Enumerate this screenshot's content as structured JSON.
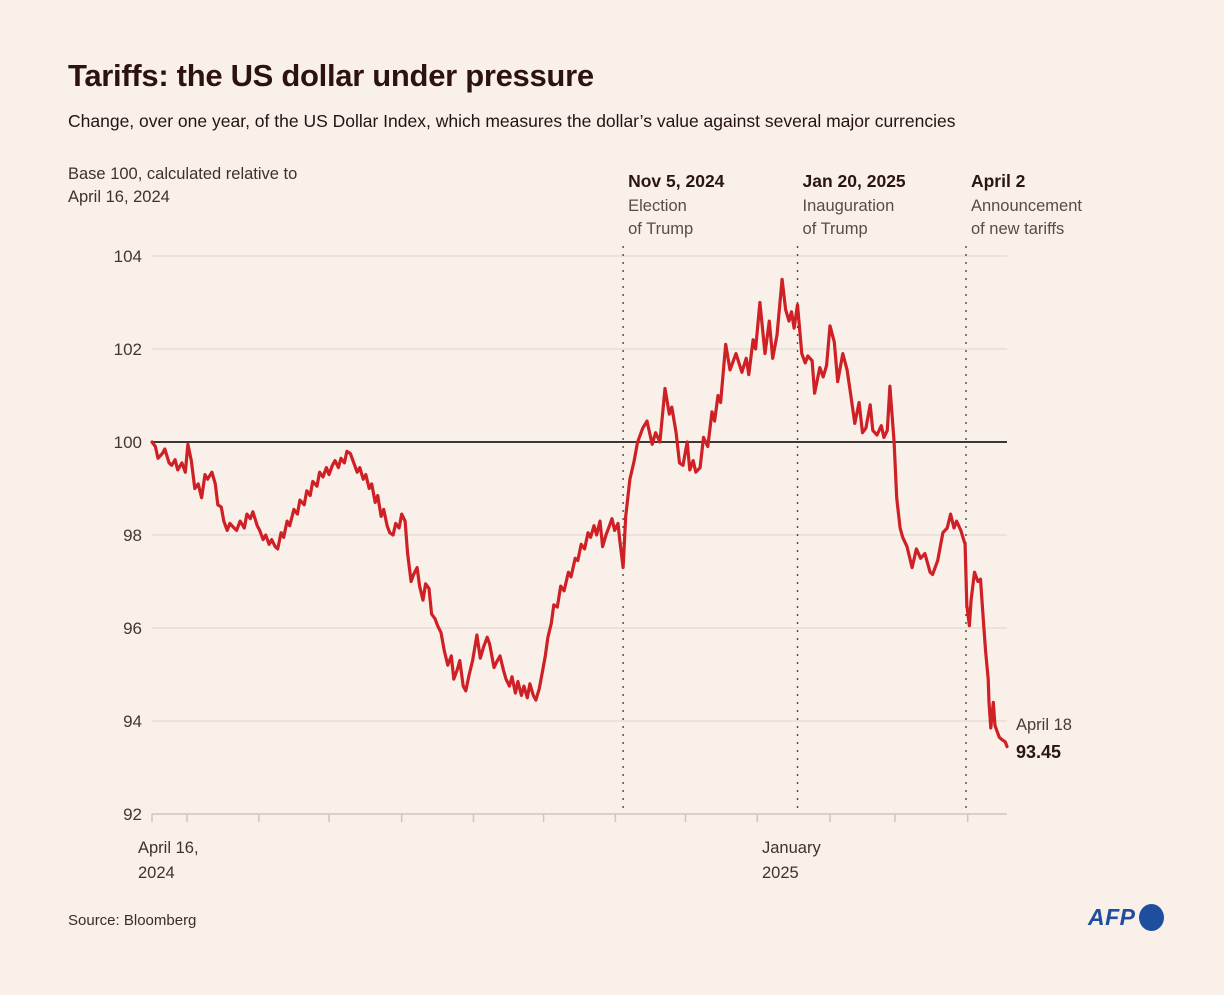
{
  "page": {
    "title": "Tariffs: the US dollar under pressure",
    "subtitle": "Change, over one year, of the US Dollar Index, which measures the dollar’s value against several major currencies",
    "note": "Base 100, calculated relative to\nApril 16, 2024",
    "source": "Source: Bloomberg",
    "logo_text": "AFP"
  },
  "colors": {
    "background": "#f9f0ea",
    "line_red": "#cf2026",
    "grid_light": "#ded4cf",
    "axis_baseline": "#cfc5c0",
    "zero_line_dark": "#3b3733",
    "dotted_event_line": "#55463f",
    "tick_label": "#44372f",
    "afp_blue": "#1f4e9e"
  },
  "chart_data": {
    "type": "line",
    "title": "US Dollar Index, base 100 relative to April 16, 2024",
    "xlabel": "",
    "ylabel": "",
    "x_range": [
      "April 16, 2024",
      "April 18, 2025"
    ],
    "x_axis_labels": {
      "start": "April 16,\n2024",
      "january": "January\n2025"
    },
    "y_axis": {
      "min": 92,
      "max": 104,
      "ticks": [
        104,
        102,
        100,
        98,
        96,
        94,
        92
      ],
      "baseline_value": 100
    },
    "grid": "horizontal-only",
    "legend": "none",
    "month_ticks_t": [
      0,
      0.041,
      0.125,
      0.207,
      0.292,
      0.376,
      0.458,
      0.542,
      0.624,
      0.708,
      0.793,
      0.869,
      0.954
    ],
    "events": [
      {
        "t": 0.551,
        "date": "Nov 5, 2024",
        "desc": "Election\nof Trump"
      },
      {
        "t": 0.755,
        "date": "Jan 20, 2025",
        "desc": "Inauguration\nof Trump"
      },
      {
        "t": 0.952,
        "date": "April 2",
        "desc": "Announcement\nof new tariffs"
      }
    ],
    "end_label": {
      "date": "April 18",
      "value": "93.45"
    },
    "series_name": "US Dollar Index (base 100)",
    "series": [
      [
        0,
        100
      ],
      [
        0.004,
        99.9
      ],
      [
        0.007,
        99.65
      ],
      [
        0.012,
        99.75
      ],
      [
        0.015,
        99.85
      ],
      [
        0.02,
        99.55
      ],
      [
        0.023,
        99.5
      ],
      [
        0.027,
        99.62
      ],
      [
        0.03,
        99.4
      ],
      [
        0.035,
        99.55
      ],
      [
        0.039,
        99.35
      ],
      [
        0.042,
        99.95
      ],
      [
        0.046,
        99.6
      ],
      [
        0.05,
        99
      ],
      [
        0.054,
        99.1
      ],
      [
        0.058,
        98.8
      ],
      [
        0.062,
        99.3
      ],
      [
        0.065,
        99.2
      ],
      [
        0.07,
        99.35
      ],
      [
        0.074,
        99.1
      ],
      [
        0.077,
        98.65
      ],
      [
        0.081,
        98.6
      ],
      [
        0.084,
        98.3
      ],
      [
        0.088,
        98.1
      ],
      [
        0.091,
        98.25
      ],
      [
        0.096,
        98.15
      ],
      [
        0.099,
        98.1
      ],
      [
        0.103,
        98.3
      ],
      [
        0.108,
        98.15
      ],
      [
        0.111,
        98.45
      ],
      [
        0.115,
        98.35
      ],
      [
        0.118,
        98.5
      ],
      [
        0.123,
        98.2
      ],
      [
        0.126,
        98.1
      ],
      [
        0.13,
        97.9
      ],
      [
        0.133,
        98
      ],
      [
        0.137,
        97.8
      ],
      [
        0.14,
        97.9
      ],
      [
        0.144,
        97.75
      ],
      [
        0.147,
        97.7
      ],
      [
        0.151,
        98.05
      ],
      [
        0.154,
        97.95
      ],
      [
        0.158,
        98.3
      ],
      [
        0.161,
        98.2
      ],
      [
        0.166,
        98.55
      ],
      [
        0.17,
        98.45
      ],
      [
        0.173,
        98.75
      ],
      [
        0.178,
        98.65
      ],
      [
        0.181,
        98.95
      ],
      [
        0.185,
        98.85
      ],
      [
        0.188,
        99.15
      ],
      [
        0.193,
        99.05
      ],
      [
        0.196,
        99.35
      ],
      [
        0.2,
        99.25
      ],
      [
        0.204,
        99.45
      ],
      [
        0.207,
        99.3
      ],
      [
        0.211,
        99.5
      ],
      [
        0.214,
        99.6
      ],
      [
        0.218,
        99.45
      ],
      [
        0.221,
        99.65
      ],
      [
        0.225,
        99.55
      ],
      [
        0.228,
        99.8
      ],
      [
        0.232,
        99.75
      ],
      [
        0.235,
        99.6
      ],
      [
        0.24,
        99.35
      ],
      [
        0.243,
        99.45
      ],
      [
        0.247,
        99.2
      ],
      [
        0.25,
        99.3
      ],
      [
        0.254,
        99
      ],
      [
        0.257,
        99.1
      ],
      [
        0.261,
        98.7
      ],
      [
        0.264,
        98.85
      ],
      [
        0.268,
        98.4
      ],
      [
        0.271,
        98.55
      ],
      [
        0.275,
        98.2
      ],
      [
        0.278,
        98.05
      ],
      [
        0.282,
        98
      ],
      [
        0.285,
        98.25
      ],
      [
        0.289,
        98.15
      ],
      [
        0.292,
        98.45
      ],
      [
        0.296,
        98.3
      ],
      [
        0.299,
        97.6
      ],
      [
        0.303,
        97
      ],
      [
        0.306,
        97.15
      ],
      [
        0.31,
        97.3
      ],
      [
        0.313,
        96.9
      ],
      [
        0.317,
        96.6
      ],
      [
        0.32,
        96.95
      ],
      [
        0.324,
        96.85
      ],
      [
        0.327,
        96.3
      ],
      [
        0.331,
        96.2
      ],
      [
        0.334,
        96.05
      ],
      [
        0.338,
        95.9
      ],
      [
        0.342,
        95.5
      ],
      [
        0.346,
        95.2
      ],
      [
        0.35,
        95.4
      ],
      [
        0.353,
        94.9
      ],
      [
        0.357,
        95.1
      ],
      [
        0.36,
        95.3
      ],
      [
        0.364,
        94.75
      ],
      [
        0.367,
        94.65
      ],
      [
        0.371,
        95
      ],
      [
        0.375,
        95.3
      ],
      [
        0.38,
        95.85
      ],
      [
        0.384,
        95.35
      ],
      [
        0.388,
        95.6
      ],
      [
        0.392,
        95.8
      ],
      [
        0.395,
        95.65
      ],
      [
        0.4,
        95.15
      ],
      [
        0.404,
        95.3
      ],
      [
        0.407,
        95.4
      ],
      [
        0.411,
        95.1
      ],
      [
        0.414,
        94.9
      ],
      [
        0.418,
        94.75
      ],
      [
        0.421,
        94.95
      ],
      [
        0.425,
        94.6
      ],
      [
        0.428,
        94.85
      ],
      [
        0.432,
        94.55
      ],
      [
        0.435,
        94.75
      ],
      [
        0.439,
        94.5
      ],
      [
        0.442,
        94.8
      ],
      [
        0.446,
        94.55
      ],
      [
        0.449,
        94.45
      ],
      [
        0.453,
        94.7
      ],
      [
        0.456,
        95
      ],
      [
        0.46,
        95.4
      ],
      [
        0.463,
        95.8
      ],
      [
        0.467,
        96.1
      ],
      [
        0.47,
        96.5
      ],
      [
        0.474,
        96.45
      ],
      [
        0.478,
        96.9
      ],
      [
        0.482,
        96.8
      ],
      [
        0.487,
        97.2
      ],
      [
        0.49,
        97.1
      ],
      [
        0.495,
        97.5
      ],
      [
        0.498,
        97.45
      ],
      [
        0.502,
        97.8
      ],
      [
        0.506,
        97.7
      ],
      [
        0.51,
        98.05
      ],
      [
        0.513,
        97.95
      ],
      [
        0.517,
        98.2
      ],
      [
        0.52,
        98
      ],
      [
        0.524,
        98.3
      ],
      [
        0.527,
        97.75
      ],
      [
        0.531,
        98
      ],
      [
        0.534,
        98.15
      ],
      [
        0.538,
        98.35
      ],
      [
        0.541,
        98.1
      ],
      [
        0.545,
        98.25
      ],
      [
        0.547,
        97.9
      ],
      [
        0.551,
        97.3
      ],
      [
        0.554,
        98.4
      ],
      [
        0.559,
        99.2
      ],
      [
        0.564,
        99.6
      ],
      [
        0.568,
        100
      ],
      [
        0.574,
        100.3
      ],
      [
        0.579,
        100.45
      ],
      [
        0.585,
        99.95
      ],
      [
        0.589,
        100.2
      ],
      [
        0.594,
        100
      ],
      [
        0.6,
        101.15
      ],
      [
        0.605,
        100.6
      ],
      [
        0.608,
        100.75
      ],
      [
        0.613,
        100.2
      ],
      [
        0.617,
        99.55
      ],
      [
        0.621,
        99.5
      ],
      [
        0.626,
        100
      ],
      [
        0.629,
        99.4
      ],
      [
        0.633,
        99.6
      ],
      [
        0.636,
        99.35
      ],
      [
        0.641,
        99.45
      ],
      [
        0.645,
        100.1
      ],
      [
        0.65,
        99.9
      ],
      [
        0.655,
        100.65
      ],
      [
        0.658,
        100.45
      ],
      [
        0.662,
        101
      ],
      [
        0.665,
        100.85
      ],
      [
        0.671,
        102.1
      ],
      [
        0.676,
        101.55
      ],
      [
        0.683,
        101.9
      ],
      [
        0.69,
        101.5
      ],
      [
        0.695,
        101.8
      ],
      [
        0.698,
        101.45
      ],
      [
        0.703,
        102.2
      ],
      [
        0.706,
        102
      ],
      [
        0.711,
        103
      ],
      [
        0.717,
        101.9
      ],
      [
        0.722,
        102.6
      ],
      [
        0.726,
        101.8
      ],
      [
        0.731,
        102.3
      ],
      [
        0.737,
        103.5
      ],
      [
        0.741,
        102.85
      ],
      [
        0.745,
        102.6
      ],
      [
        0.748,
        102.8
      ],
      [
        0.751,
        102.45
      ],
      [
        0.755,
        102.95
      ],
      [
        0.76,
        101.9
      ],
      [
        0.764,
        101.7
      ],
      [
        0.767,
        101.85
      ],
      [
        0.772,
        101.75
      ],
      [
        0.775,
        101.05
      ],
      [
        0.781,
        101.6
      ],
      [
        0.785,
        101.4
      ],
      [
        0.789,
        101.65
      ],
      [
        0.793,
        102.5
      ],
      [
        0.798,
        102.15
      ],
      [
        0.802,
        101.3
      ],
      [
        0.808,
        101.9
      ],
      [
        0.813,
        101.55
      ],
      [
        0.817,
        101.05
      ],
      [
        0.822,
        100.4
      ],
      [
        0.827,
        100.85
      ],
      [
        0.831,
        100.2
      ],
      [
        0.835,
        100.3
      ],
      [
        0.84,
        100.8
      ],
      [
        0.843,
        100.25
      ],
      [
        0.848,
        100.15
      ],
      [
        0.853,
        100.35
      ],
      [
        0.856,
        100.1
      ],
      [
        0.86,
        100.25
      ],
      [
        0.863,
        101.2
      ],
      [
        0.868,
        100
      ],
      [
        0.871,
        98.8
      ],
      [
        0.875,
        98.15
      ],
      [
        0.878,
        97.95
      ],
      [
        0.883,
        97.75
      ],
      [
        0.889,
        97.3
      ],
      [
        0.894,
        97.7
      ],
      [
        0.899,
        97.5
      ],
      [
        0.904,
        97.6
      ],
      [
        0.91,
        97.2
      ],
      [
        0.913,
        97.15
      ],
      [
        0.919,
        97.45
      ],
      [
        0.925,
        98.05
      ],
      [
        0.93,
        98.15
      ],
      [
        0.934,
        98.45
      ],
      [
        0.938,
        98.15
      ],
      [
        0.941,
        98.3
      ],
      [
        0.946,
        98.1
      ],
      [
        0.951,
        97.8
      ],
      [
        0.953,
        96.5
      ],
      [
        0.956,
        96.05
      ],
      [
        0.958,
        96.6
      ],
      [
        0.962,
        97.2
      ],
      [
        0.966,
        97
      ],
      [
        0.969,
        97.05
      ],
      [
        0.973,
        96
      ],
      [
        0.975,
        95.5
      ],
      [
        0.978,
        94.9
      ],
      [
        0.979,
        94.4
      ],
      [
        0.981,
        93.85
      ],
      [
        0.984,
        94.4
      ],
      [
        0.986,
        93.9
      ],
      [
        0.988,
        93.8
      ],
      [
        0.991,
        93.65
      ],
      [
        0.994,
        93.6
      ],
      [
        0.998,
        93.55
      ],
      [
        1,
        93.45
      ]
    ]
  }
}
